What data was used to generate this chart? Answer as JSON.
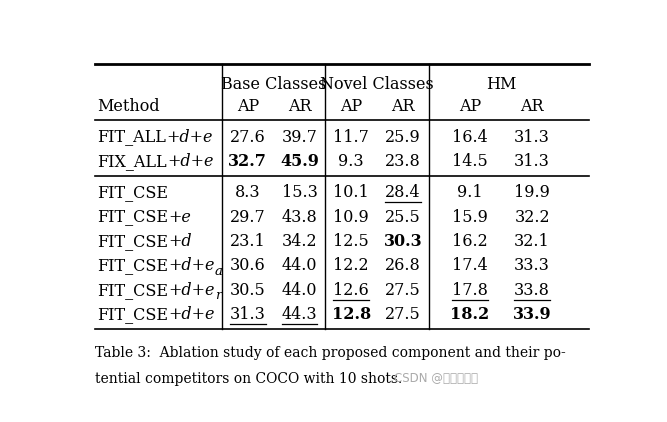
{
  "caption_line1": "Table 3:  Ablation study of each proposed component and their po-",
  "caption_line2": "tential competitors on COCO with 10 shots.",
  "watermark": "CSDN @小张好难瑞",
  "figsize": [
    6.67,
    4.22
  ],
  "dpi": 100,
  "bg_color": "#ffffff",
  "group1": [
    {
      "method": "FIT_ALL+d+e",
      "vals": [
        "27.6",
        "39.7",
        "11.7",
        "25.9",
        "16.4",
        "31.3"
      ],
      "bold": [],
      "underline": []
    },
    {
      "method": "FIX_ALL+d+e",
      "vals": [
        "32.7",
        "45.9",
        "9.3",
        "23.8",
        "14.5",
        "31.3"
      ],
      "bold": [
        0,
        1
      ],
      "underline": []
    }
  ],
  "group2": [
    {
      "method": "FIT_CSE",
      "vals": [
        "8.3",
        "15.3",
        "10.1",
        "28.4",
        "9.1",
        "19.9"
      ],
      "bold": [],
      "underline": [
        3
      ]
    },
    {
      "method": "FIT_CSE+e",
      "vals": [
        "29.7",
        "43.8",
        "10.9",
        "25.5",
        "15.9",
        "32.2"
      ],
      "bold": [],
      "underline": []
    },
    {
      "method": "FIT_CSE+d",
      "vals": [
        "23.1",
        "34.2",
        "12.5",
        "30.3",
        "16.2",
        "32.1"
      ],
      "bold": [
        3
      ],
      "underline": []
    },
    {
      "method": "FIT_CSE+d+ea",
      "vals": [
        "30.6",
        "44.0",
        "12.2",
        "26.8",
        "17.4",
        "33.3"
      ],
      "bold": [],
      "underline": []
    },
    {
      "method": "FIT_CSE+d+er",
      "vals": [
        "30.5",
        "44.0",
        "12.6",
        "27.5",
        "17.8",
        "33.8"
      ],
      "bold": [],
      "underline": [
        2,
        4,
        5
      ]
    },
    {
      "method": "FIT_CSE+d+e",
      "vals": [
        "31.3",
        "44.3",
        "12.8",
        "27.5",
        "18.2",
        "33.9"
      ],
      "bold": [
        2,
        4,
        5
      ],
      "underline": [
        0,
        1
      ]
    }
  ]
}
